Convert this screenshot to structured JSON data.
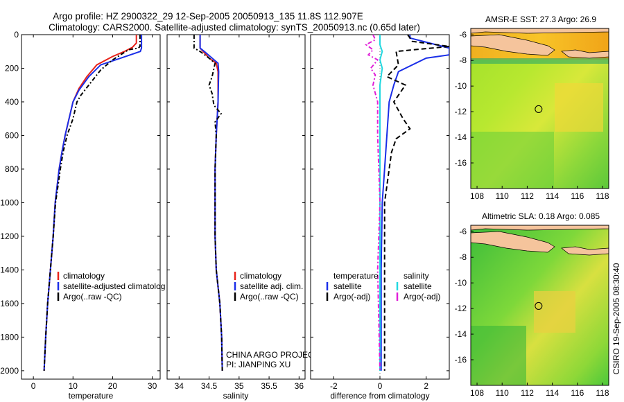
{
  "title": {
    "line1": "Argo profile: HZ 2900322_29 12-Sep-2005 20050913_135 11.8S 112.907E",
    "line2": "Climatology: CARS2000. Satellite-adjusted climatology: synTS_20050913.nc (0.65d later)"
  },
  "side_label": "CSIRO 19-Sep-2005 08:30:40",
  "colors": {
    "climatology": "#e8231a",
    "satellite": "#1a2ee8",
    "argo": "#000000",
    "sat_salinity": "#22d8e0",
    "argo_salinity": "#e020d8",
    "land": "#f5c49c"
  },
  "chart_data": [
    {
      "type": "line",
      "xlabel": "temperature",
      "ylim": [
        2050,
        0
      ],
      "xlim": [
        -3,
        32
      ],
      "xticks": [
        "0",
        "10",
        "20",
        "30"
      ],
      "yticks": [
        "0",
        "200",
        "400",
        "600",
        "800",
        "1000",
        "1200",
        "1400",
        "1600",
        "1800",
        "2000"
      ],
      "legend": {
        "position": "lower-right",
        "entries": [
          "climatology",
          "satellite-adjusted climatolog",
          "Argo(..raw -QC)"
        ]
      },
      "series": [
        {
          "name": "climatology",
          "color": "#e8231a",
          "style": "solid",
          "points": [
            [
              26,
              0
            ],
            [
              26,
              50
            ],
            [
              25,
              75
            ],
            [
              23,
              100
            ],
            [
              20,
              130
            ],
            [
              16,
              180
            ],
            [
              13.5,
              250
            ],
            [
              11.5,
              320
            ],
            [
              10,
              400
            ],
            [
              9,
              500
            ],
            [
              8,
              600
            ],
            [
              7.2,
              700
            ],
            [
              6.5,
              800
            ],
            [
              6,
              900
            ],
            [
              5.5,
              1000
            ],
            [
              5,
              1200
            ],
            [
              4.3,
              1400
            ],
            [
              3.6,
              1600
            ],
            [
              3.1,
              1800
            ],
            [
              2.7,
              2000
            ]
          ]
        },
        {
          "name": "satellite-adjusted climatolog",
          "color": "#1a2ee8",
          "style": "solid",
          "points": [
            [
              27.3,
              0
            ],
            [
              27.3,
              80
            ],
            [
              27,
              100
            ],
            [
              22,
              140
            ],
            [
              17,
              180
            ],
            [
              14,
              250
            ],
            [
              11.5,
              330
            ],
            [
              10,
              400
            ],
            [
              9,
              500
            ],
            [
              8,
              600
            ],
            [
              7.2,
              700
            ],
            [
              6.5,
              800
            ],
            [
              6,
              900
            ],
            [
              5.5,
              1000
            ],
            [
              5,
              1200
            ],
            [
              4.3,
              1400
            ],
            [
              3.6,
              1600
            ],
            [
              3.1,
              1800
            ],
            [
              2.7,
              2000
            ]
          ]
        },
        {
          "name": "Argo(..raw -QC)",
          "color": "#000000",
          "style": "dashdot",
          "points": [
            [
              26.9,
              0
            ],
            [
              26.9,
              70
            ],
            [
              26.5,
              80
            ],
            [
              24,
              90
            ],
            [
              20,
              150
            ],
            [
              17,
              210
            ],
            [
              14,
              300
            ],
            [
              12,
              360
            ],
            [
              11,
              400
            ],
            [
              10,
              500
            ],
            [
              8.5,
              600
            ],
            [
              7.5,
              700
            ],
            [
              6.8,
              800
            ],
            [
              6.2,
              900
            ],
            [
              5.6,
              1000
            ],
            [
              5,
              1200
            ],
            [
              4.3,
              1400
            ],
            [
              3.6,
              1600
            ],
            [
              3.1,
              1800
            ],
            [
              2.7,
              2000
            ]
          ]
        }
      ]
    },
    {
      "type": "line",
      "xlabel": "salinity",
      "ylim": [
        2050,
        0
      ],
      "xlim": [
        33.8,
        36.1
      ],
      "xticks": [
        "34",
        "34.5",
        "35",
        "35.5",
        "36"
      ],
      "legend": {
        "position": "lower-right",
        "entries": [
          "climatology",
          "satellite adj. clim.",
          "Argo(..raw -QC)"
        ]
      },
      "annotation": [
        "CHINA ARGO PROJECT",
        "PI: JIANPING XU"
      ],
      "series": [
        {
          "name": "climatology",
          "color": "#e8231a",
          "style": "solid",
          "points": [
            [
              34.35,
              0
            ],
            [
              34.35,
              80
            ],
            [
              34.4,
              100
            ],
            [
              34.5,
              140
            ],
            [
              34.62,
              170
            ],
            [
              34.65,
              220
            ],
            [
              34.65,
              400
            ],
            [
              34.62,
              600
            ],
            [
              34.6,
              800
            ],
            [
              34.6,
              1000
            ],
            [
              34.6,
              1200
            ],
            [
              34.62,
              1400
            ],
            [
              34.68,
              1600
            ],
            [
              34.71,
              1800
            ],
            [
              34.72,
              2000
            ]
          ]
        },
        {
          "name": "satellite adj. clim.",
          "color": "#1a2ee8",
          "style": "solid",
          "points": [
            [
              34.35,
              0
            ],
            [
              34.35,
              80
            ],
            [
              34.42,
              100
            ],
            [
              34.55,
              140
            ],
            [
              34.65,
              170
            ],
            [
              34.66,
              220
            ],
            [
              34.65,
              400
            ],
            [
              34.62,
              600
            ],
            [
              34.6,
              800
            ],
            [
              34.6,
              1000
            ],
            [
              34.6,
              1200
            ],
            [
              34.62,
              1400
            ],
            [
              34.68,
              1600
            ],
            [
              34.71,
              1800
            ],
            [
              34.72,
              2000
            ]
          ]
        },
        {
          "name": "Argo(..raw -QC)",
          "color": "#000000",
          "style": "dashdot",
          "points": [
            [
              34.25,
              0
            ],
            [
              34.25,
              80
            ],
            [
              34.35,
              100
            ],
            [
              34.5,
              140
            ],
            [
              34.6,
              170
            ],
            [
              34.55,
              250
            ],
            [
              34.5,
              300
            ],
            [
              34.55,
              350
            ],
            [
              34.58,
              420
            ],
            [
              34.7,
              470
            ],
            [
              34.6,
              520
            ],
            [
              34.62,
              600
            ],
            [
              34.6,
              800
            ],
            [
              34.6,
              1000
            ],
            [
              34.6,
              1200
            ],
            [
              34.62,
              1400
            ],
            [
              34.68,
              1600
            ],
            [
              34.71,
              1800
            ],
            [
              34.72,
              2000
            ]
          ]
        }
      ]
    },
    {
      "type": "line",
      "xlabel": "difference from climatology",
      "ylim": [
        2050,
        0
      ],
      "xlim": [
        -3,
        3
      ],
      "xticks": [
        "-2",
        "0",
        "2"
      ],
      "legend": {
        "position": "lower",
        "columns": [
          {
            "header": "temperature",
            "entries": [
              "satellite",
              "Argo(-adj)"
            ]
          },
          {
            "header": "salinity",
            "entries": [
              "satellite",
              "Argo(-adj)"
            ]
          }
        ]
      },
      "series": [
        {
          "name": "satellite",
          "group": "temperature",
          "color": "#1a2ee8",
          "style": "solid",
          "points": [
            [
              1.3,
              0
            ],
            [
              1.3,
              20
            ],
            [
              3,
              80
            ],
            [
              3,
              120
            ],
            [
              2,
              140
            ],
            [
              0.8,
              220
            ],
            [
              0.6,
              300
            ],
            [
              0.4,
              400
            ],
            [
              0.3,
              600
            ],
            [
              0.2,
              800
            ],
            [
              0.1,
              1000
            ],
            [
              0.05,
              1400
            ],
            [
              0.05,
              2000
            ]
          ]
        },
        {
          "name": "Argo(-adj)",
          "group": "temperature",
          "color": "#000000",
          "style": "dashed",
          "points": [
            [
              1.2,
              0
            ],
            [
              1.4,
              40
            ],
            [
              3,
              70
            ],
            [
              0.7,
              100
            ],
            [
              0.8,
              180
            ],
            [
              0.3,
              250
            ],
            [
              1.1,
              300
            ],
            [
              0.6,
              400
            ],
            [
              1,
              500
            ],
            [
              1.3,
              560
            ],
            [
              0.7,
              620
            ],
            [
              0.5,
              700
            ],
            [
              0.4,
              800
            ],
            [
              0.2,
              1000
            ],
            [
              0.2,
              1400
            ],
            [
              0.2,
              2000
            ]
          ]
        },
        {
          "name": "satellite",
          "group": "salinity",
          "color": "#22d8e0",
          "style": "solid",
          "points": [
            [
              0,
              0
            ],
            [
              0,
              60
            ],
            [
              0.1,
              100
            ],
            [
              0,
              150
            ],
            [
              0.1,
              200
            ],
            [
              0,
              300
            ],
            [
              0,
              600
            ],
            [
              0,
              1000
            ],
            [
              0,
              1400
            ],
            [
              0,
              2000
            ]
          ]
        },
        {
          "name": "Argo(-adj)",
          "group": "salinity",
          "color": "#e020d8",
          "style": "dashdot",
          "points": [
            [
              -0.3,
              0
            ],
            [
              -0.2,
              30
            ],
            [
              -0.6,
              60
            ],
            [
              -0.3,
              90
            ],
            [
              -0.5,
              120
            ],
            [
              -0.1,
              150
            ],
            [
              -0.4,
              200
            ],
            [
              -0.2,
              240
            ],
            [
              -0.3,
              300
            ],
            [
              -0.1,
              400
            ],
            [
              -0.1,
              600
            ],
            [
              0,
              1000
            ],
            [
              -0.1,
              1400
            ],
            [
              0,
              2000
            ]
          ]
        }
      ]
    },
    {
      "type": "heatmap",
      "title": "AMSR-E SST: 27.3 Argo: 26.9",
      "xlim": [
        107.5,
        118.5
      ],
      "ylim": [
        -18,
        -5.5
      ],
      "xticks": [
        "108",
        "110",
        "112",
        "114",
        "116",
        "118"
      ],
      "yticks": [
        "-6",
        "-8",
        "-10",
        "-12",
        "-14",
        "-16"
      ],
      "marker": {
        "lon": 112.907,
        "lat": -11.8
      }
    },
    {
      "type": "heatmap",
      "title": "Altimetric SLA: 0.18 Argo: 0.085",
      "xlim": [
        107.5,
        118.5
      ],
      "ylim": [
        -18,
        -5.5
      ],
      "xticks": [
        "108",
        "110",
        "112",
        "114",
        "116",
        "118"
      ],
      "yticks": [
        "-6",
        "-8",
        "-10",
        "-12",
        "-14",
        "-16"
      ],
      "marker": {
        "lon": 112.907,
        "lat": -11.8
      }
    }
  ]
}
